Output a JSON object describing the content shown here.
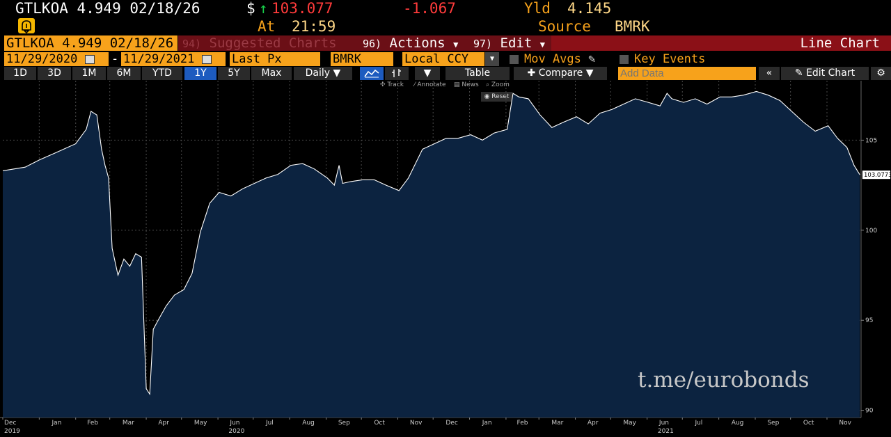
{
  "header": {
    "ticker_line": "GTLKOA 4.949 02/18/26",
    "currency": "$",
    "price": "103.077",
    "change": "-1.067",
    "yld_label": "Yld",
    "yld_value": "4.145",
    "at_label": "At",
    "time": "21:59",
    "source_label": "Source",
    "source_value": "BMRK"
  },
  "menu": {
    "ticker_box": "GTLKOA 4.949 02/18/26",
    "suggested_num": "94)",
    "suggested": "Suggested Charts",
    "actions_num": "96)",
    "actions": "Actions",
    "edit_num": "97)",
    "edit": "Edit",
    "chart_type": "Line Chart"
  },
  "params": {
    "start_date": "11/29/2020",
    "dash": "-",
    "end_date": "11/29/2021",
    "field": "Last Px",
    "source": "BMRK",
    "currency": "Local CCY",
    "mov_avgs": "Mov Avgs",
    "key_events": "Key Events"
  },
  "toolbar": {
    "periods": [
      "1D",
      "3D",
      "1M",
      "6M",
      "YTD",
      "1Y",
      "5Y",
      "Max"
    ],
    "selected_period": "1Y",
    "frequency": "Daily",
    "table": "Table",
    "compare": "Compare",
    "add_data_placeholder": "Add Data",
    "edit_chart": "Edit Chart",
    "track": "Track",
    "annotate": "Annotate",
    "news": "News",
    "zoom": "Zoom",
    "reset": "Reset"
  },
  "watermark": "t.me/eurobonds",
  "colors": {
    "area_fill": "#0c2340",
    "line": "#ffffff",
    "accent_orange": "#f7a21b",
    "menu_red": "#8b1017"
  },
  "chart_data": {
    "type": "area",
    "title": "",
    "xlabel": "",
    "ylabel": "",
    "ylim": [
      89.6,
      108.3
    ],
    "y_ticks": [
      90,
      95,
      100,
      105
    ],
    "last_value_label": "103.0773",
    "x_tick_labels": [
      "Dec",
      "Jan",
      "Feb",
      "Mar",
      "Apr",
      "May",
      "Jun",
      "Jul",
      "Aug",
      "Sep",
      "Oct",
      "Nov",
      "Dec",
      "Jan",
      "Feb",
      "Mar",
      "Apr",
      "May",
      "Jun",
      "Jul",
      "Aug",
      "Sep",
      "Oct",
      "Nov"
    ],
    "year_labels": [
      {
        "text": "2019",
        "at": "Dec"
      },
      {
        "text": "2020",
        "at": "Jun"
      },
      {
        "text": "2021",
        "at": "Jun"
      }
    ],
    "grid": true,
    "series": [
      {
        "points": [
          [
            "2019-12-01",
            103.3
          ],
          [
            "2019-12-20",
            103.5
          ],
          [
            "2020-01-01",
            103.9
          ],
          [
            "2020-01-15",
            104.3
          ],
          [
            "2020-02-01",
            104.8
          ],
          [
            "2020-02-10",
            105.6
          ],
          [
            "2020-02-14",
            106.6
          ],
          [
            "2020-02-19",
            106.4
          ],
          [
            "2020-02-23",
            104.5
          ],
          [
            "2020-02-26",
            103.6
          ],
          [
            "2020-02-29",
            102.9
          ],
          [
            "2020-03-03",
            99.0
          ],
          [
            "2020-03-08",
            97.5
          ],
          [
            "2020-03-13",
            98.4
          ],
          [
            "2020-03-18",
            98.0
          ],
          [
            "2020-03-23",
            98.7
          ],
          [
            "2020-03-28",
            98.5
          ],
          [
            "2020-04-01",
            91.2
          ],
          [
            "2020-04-04",
            90.9
          ],
          [
            "2020-04-07",
            94.5
          ],
          [
            "2020-04-12",
            95.1
          ],
          [
            "2020-04-18",
            95.8
          ],
          [
            "2020-04-25",
            96.4
          ],
          [
            "2020-05-03",
            96.7
          ],
          [
            "2020-05-10",
            97.6
          ],
          [
            "2020-05-17",
            99.9
          ],
          [
            "2020-05-25",
            101.5
          ],
          [
            "2020-06-02",
            102.1
          ],
          [
            "2020-06-12",
            101.9
          ],
          [
            "2020-06-22",
            102.3
          ],
          [
            "2020-07-02",
            102.6
          ],
          [
            "2020-07-12",
            102.9
          ],
          [
            "2020-07-22",
            103.1
          ],
          [
            "2020-08-02",
            103.6
          ],
          [
            "2020-08-12",
            103.7
          ],
          [
            "2020-08-22",
            103.4
          ],
          [
            "2020-09-02",
            102.9
          ],
          [
            "2020-09-08",
            102.5
          ],
          [
            "2020-09-12",
            103.6
          ],
          [
            "2020-09-15",
            102.6
          ],
          [
            "2020-09-22",
            102.7
          ],
          [
            "2020-10-02",
            102.8
          ],
          [
            "2020-10-12",
            102.8
          ],
          [
            "2020-10-22",
            102.5
          ],
          [
            "2020-11-02",
            102.2
          ],
          [
            "2020-11-10",
            102.9
          ],
          [
            "2020-11-22",
            104.5
          ],
          [
            "2020-12-02",
            104.8
          ],
          [
            "2020-12-12",
            105.1
          ],
          [
            "2020-12-22",
            105.1
          ],
          [
            "2021-01-02",
            105.3
          ],
          [
            "2021-01-12",
            105.0
          ],
          [
            "2021-01-22",
            105.4
          ],
          [
            "2021-02-02",
            105.6
          ],
          [
            "2021-02-07",
            107.6
          ],
          [
            "2021-02-12",
            107.4
          ],
          [
            "2021-02-20",
            107.3
          ],
          [
            "2021-03-02",
            106.4
          ],
          [
            "2021-03-12",
            105.7
          ],
          [
            "2021-03-22",
            106.0
          ],
          [
            "2021-04-02",
            106.3
          ],
          [
            "2021-04-12",
            105.9
          ],
          [
            "2021-04-22",
            106.5
          ],
          [
            "2021-05-02",
            106.7
          ],
          [
            "2021-05-12",
            107.0
          ],
          [
            "2021-05-22",
            107.3
          ],
          [
            "2021-06-02",
            107.1
          ],
          [
            "2021-06-12",
            106.9
          ],
          [
            "2021-06-18",
            107.6
          ],
          [
            "2021-06-22",
            107.3
          ],
          [
            "2021-07-02",
            107.1
          ],
          [
            "2021-07-12",
            107.3
          ],
          [
            "2021-07-22",
            107.0
          ],
          [
            "2021-08-02",
            107.4
          ],
          [
            "2021-08-12",
            107.4
          ],
          [
            "2021-08-22",
            107.5
          ],
          [
            "2021-09-02",
            107.7
          ],
          [
            "2021-09-12",
            107.5
          ],
          [
            "2021-09-22",
            107.2
          ],
          [
            "2021-10-02",
            106.6
          ],
          [
            "2021-10-12",
            106.0
          ],
          [
            "2021-10-22",
            105.5
          ],
          [
            "2021-11-02",
            105.8
          ],
          [
            "2021-11-10",
            105.1
          ],
          [
            "2021-11-18",
            104.6
          ],
          [
            "2021-11-24",
            103.6
          ],
          [
            "2021-11-29",
            103.077
          ]
        ]
      }
    ]
  }
}
